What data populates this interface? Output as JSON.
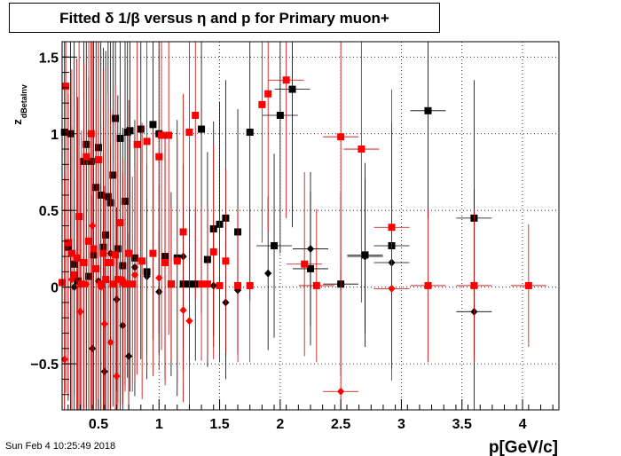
{
  "title": "Fitted δ 1/β versus η and p for Primary muon+",
  "footer": "Sun Feb  4 10:25:49 2018",
  "chart_data": {
    "type": "scatter",
    "xlabel": "p[GeV/c]",
    "ylabel_main": "z",
    "ylabel_sub": "dBetaInv",
    "xlim": [
      0.2,
      4.3
    ],
    "ylim": [
      -0.8,
      1.6
    ],
    "grid": true,
    "x_ticks": [
      0.5,
      1,
      1.5,
      2,
      2.5,
      3,
      3.5,
      4
    ],
    "x_tick_labels": [
      "0.5",
      "1",
      "1.5",
      "2",
      "2.5",
      "3",
      "3.5",
      "4"
    ],
    "y_ticks": [
      -0.5,
      0,
      0.5,
      1,
      1.5
    ],
    "y_tick_labels": [
      "−0.5",
      "0",
      "0.5",
      "1",
      "1.5"
    ],
    "series": [
      {
        "color": "#000000",
        "marker": "square",
        "points": [
          [
            0.22,
            1.01,
            2.2
          ],
          [
            0.25,
            0.26,
            1.0
          ],
          [
            0.27,
            1.0,
            2.0
          ],
          [
            0.3,
            0.15,
            1.6
          ],
          [
            0.33,
            0.04,
            1.2
          ],
          [
            0.38,
            0.82,
            2.2
          ],
          [
            0.4,
            0.93,
            2.0
          ],
          [
            0.42,
            0.07,
            1.3
          ],
          [
            0.44,
            0.82,
            2.1
          ],
          [
            0.46,
            0.21,
            1.4
          ],
          [
            0.48,
            0.65,
            2.0
          ],
          [
            0.5,
            0.91,
            1.9
          ],
          [
            0.52,
            0.6,
            1.8
          ],
          [
            0.54,
            0.26,
            1.3
          ],
          [
            0.56,
            0.34,
            1.2
          ],
          [
            0.58,
            0.59,
            1.7
          ],
          [
            0.6,
            0.55,
            1.6
          ],
          [
            0.62,
            0.73,
            1.5
          ],
          [
            0.64,
            1.1,
            1.9
          ],
          [
            0.66,
            0.25,
            1.0
          ],
          [
            0.68,
            0.97,
            1.8
          ],
          [
            0.7,
            0.14,
            0.9
          ],
          [
            0.72,
            0.56,
            1.2
          ],
          [
            0.74,
            1.01,
            1.6
          ],
          [
            0.76,
            1.02,
            1.7
          ],
          [
            0.8,
            0.19,
            0.9
          ],
          [
            0.85,
            1.03,
            1.5
          ],
          [
            0.9,
            0.1,
            0.7
          ],
          [
            0.95,
            1.06,
            1.4
          ],
          [
            1.0,
            1.0,
            1.3
          ],
          [
            1.05,
            0.2,
            0.8
          ],
          [
            1.1,
            0.02,
            0.6
          ],
          [
            1.15,
            0.19,
            0.9
          ],
          [
            1.2,
            0.02,
            0.5
          ],
          [
            1.25,
            0.02,
            0.5
          ],
          [
            1.3,
            0.02,
            0.5
          ],
          [
            1.35,
            1.03,
            1.2
          ],
          [
            1.4,
            0.18,
            0.7
          ],
          [
            1.45,
            0.38,
            0.7
          ],
          [
            1.5,
            0.41,
            0.8
          ],
          [
            1.55,
            0.45,
            0.9
          ],
          [
            1.65,
            0.36,
            0.8
          ],
          [
            1.75,
            1.01,
            1.1
          ],
          [
            1.95,
            0.27,
            0.6
          ],
          [
            2.0,
            1.12,
            0.9
          ],
          [
            2.1,
            1.29,
            0.9
          ],
          [
            2.25,
            0.12,
            0.5
          ],
          [
            2.5,
            0.02,
            0.6
          ],
          [
            2.7,
            0.21,
            0.6
          ],
          [
            2.92,
            0.27,
            0.8
          ],
          [
            3.22,
            1.15,
            0.7
          ],
          [
            3.6,
            0.45,
            0.9
          ]
        ]
      },
      {
        "color": "#000000",
        "marker": "diamond",
        "points": [
          [
            0.3,
            0.0,
            0.7
          ],
          [
            0.45,
            -0.4,
            1.0
          ],
          [
            0.5,
            0.04,
            0.8
          ],
          [
            0.55,
            -0.55,
            0.9
          ],
          [
            0.6,
            0.22,
            0.7
          ],
          [
            0.65,
            -0.08,
            0.6
          ],
          [
            0.7,
            -0.25,
            0.7
          ],
          [
            0.75,
            -0.45,
            0.8
          ],
          [
            0.8,
            0.13,
            0.6
          ],
          [
            0.9,
            0.07,
            0.5
          ],
          [
            1.0,
            -0.03,
            0.4
          ],
          [
            1.2,
            0.2,
            0.6
          ],
          [
            1.45,
            0.01,
            0.4
          ],
          [
            1.55,
            -0.1,
            0.5
          ],
          [
            1.65,
            -0.02,
            0.4
          ],
          [
            1.9,
            0.09,
            0.5
          ],
          [
            2.25,
            0.25,
            0.5
          ],
          [
            2.7,
            0.2,
            0.5
          ],
          [
            2.92,
            0.16,
            0.6
          ],
          [
            3.6,
            -0.16,
            0.8
          ]
        ]
      },
      {
        "color": "#ff0000",
        "marker": "square",
        "points": [
          [
            0.2,
            0.03,
            1.0
          ],
          [
            0.23,
            1.31,
            2.0
          ],
          [
            0.25,
            0.29,
            1.0
          ],
          [
            0.28,
            0.22,
            1.2
          ],
          [
            0.3,
            0.08,
            1.1
          ],
          [
            0.32,
            0.19,
            1.3
          ],
          [
            0.34,
            0.46,
            1.8
          ],
          [
            0.36,
            0.02,
            1.0
          ],
          [
            0.38,
            0.16,
            1.3
          ],
          [
            0.4,
            0.85,
            2.0
          ],
          [
            0.42,
            0.3,
            1.5
          ],
          [
            0.44,
            1.0,
            2.0
          ],
          [
            0.46,
            0.25,
            1.4
          ],
          [
            0.48,
            0.12,
            1.1
          ],
          [
            0.5,
            0.83,
            1.8
          ],
          [
            0.52,
            0.02,
            0.9
          ],
          [
            0.54,
            0.22,
            1.2
          ],
          [
            0.56,
            0.05,
            1.0
          ],
          [
            0.58,
            0.16,
            1.1
          ],
          [
            0.6,
            0.16,
            1.0
          ],
          [
            0.62,
            0.02,
            0.8
          ],
          [
            0.64,
            0.21,
            1.1
          ],
          [
            0.66,
            0.05,
            0.9
          ],
          [
            0.68,
            0.42,
            1.3
          ],
          [
            0.7,
            0.03,
            0.8
          ],
          [
            0.72,
            0.02,
            0.7
          ],
          [
            0.75,
            0.22,
            1.0
          ],
          [
            0.78,
            0.02,
            0.7
          ],
          [
            0.82,
            0.93,
            1.5
          ],
          [
            0.86,
            0.17,
            0.9
          ],
          [
            0.9,
            0.95,
            1.5
          ],
          [
            0.95,
            0.22,
            0.8
          ],
          [
            1.0,
            0.85,
            1.3
          ],
          [
            1.02,
            0.99,
            1.4
          ],
          [
            1.05,
            0.16,
            0.8
          ],
          [
            1.08,
            0.99,
            1.3
          ],
          [
            1.1,
            0.02,
            0.5
          ],
          [
            1.15,
            0.17,
            0.8
          ],
          [
            1.2,
            0.36,
            0.9
          ],
          [
            1.25,
            1.01,
            1.2
          ],
          [
            1.3,
            1.12,
            1.2
          ],
          [
            1.35,
            0.02,
            0.5
          ],
          [
            1.4,
            0.02,
            0.5
          ],
          [
            1.45,
            0.23,
            0.7
          ],
          [
            1.5,
            0.01,
            0.5
          ],
          [
            1.55,
            0.17,
            0.6
          ],
          [
            1.65,
            0.01,
            0.5
          ],
          [
            1.75,
            0.01,
            0.5
          ],
          [
            1.85,
            1.19,
            0.9
          ],
          [
            1.9,
            1.26,
            0.9
          ],
          [
            2.05,
            1.35,
            0.9
          ],
          [
            2.2,
            0.15,
            0.6
          ],
          [
            2.3,
            0.01,
            0.5
          ],
          [
            2.5,
            0.98,
            1.0
          ],
          [
            2.67,
            0.9,
            1.0
          ],
          [
            2.92,
            0.39,
            0.9
          ],
          [
            3.22,
            0.01,
            0.5
          ],
          [
            3.6,
            0.01,
            0.5
          ],
          [
            4.05,
            0.01,
            0.4
          ]
        ]
      },
      {
        "color": "#ff0000",
        "marker": "diamond",
        "points": [
          [
            0.22,
            -0.47,
            1.2
          ],
          [
            0.28,
            0.05,
            1.0
          ],
          [
            0.35,
            -0.16,
            1.0
          ],
          [
            0.4,
            0.02,
            0.8
          ],
          [
            0.45,
            0.4,
            1.2
          ],
          [
            0.52,
            0.0,
            0.8
          ],
          [
            0.55,
            -0.24,
            0.9
          ],
          [
            0.6,
            -0.36,
            0.9
          ],
          [
            0.65,
            -0.58,
            0.8
          ],
          [
            0.7,
            0.05,
            0.7
          ],
          [
            0.8,
            0.08,
            0.7
          ],
          [
            1.0,
            0.06,
            0.6
          ],
          [
            1.2,
            -0.15,
            0.6
          ],
          [
            1.25,
            -0.22,
            0.6
          ],
          [
            1.5,
            0.01,
            0.5
          ],
          [
            2.5,
            -0.68,
            0.8
          ],
          [
            2.92,
            -0.01,
            0.6
          ]
        ]
      }
    ]
  }
}
